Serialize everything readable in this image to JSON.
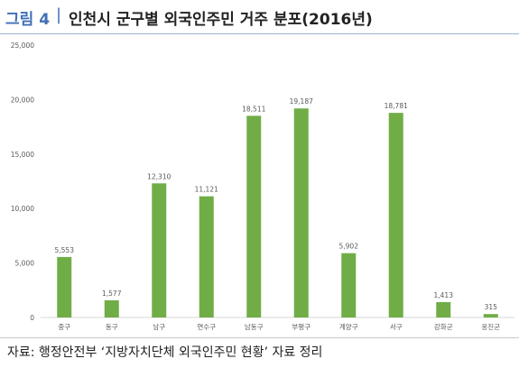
{
  "header": {
    "label": "그림 4",
    "separator": "|",
    "title": "인천시 군구별 외국인주민 거주 분포(2016년)"
  },
  "source": "자료: 행정안전부 ‘지방자치단체 외국인주민 현황’ 자료 정리",
  "colors": {
    "bar": "#70ad47",
    "accent": "#3f6fb5",
    "axis_text": "#595959",
    "grid_line": "#d9d9d9"
  },
  "chart_data": {
    "type": "bar",
    "categories": [
      "중구",
      "동구",
      "남구",
      "연수구",
      "남동구",
      "부평구",
      "계양구",
      "서구",
      "강화군",
      "옹진군"
    ],
    "values": [
      5553,
      1577,
      12310,
      11121,
      18511,
      19187,
      5902,
      18781,
      1413,
      315
    ],
    "value_labels": [
      "5,553",
      "1,577",
      "12,310",
      "11,121",
      "18,511",
      "19,187",
      "5,902",
      "18,781",
      "1,413",
      "315"
    ],
    "y_ticks": [
      "0",
      "5,000",
      "10,000",
      "15,000",
      "20,000",
      "25,000"
    ],
    "ylim": [
      0,
      25000
    ],
    "grid": false,
    "legend": "none"
  }
}
